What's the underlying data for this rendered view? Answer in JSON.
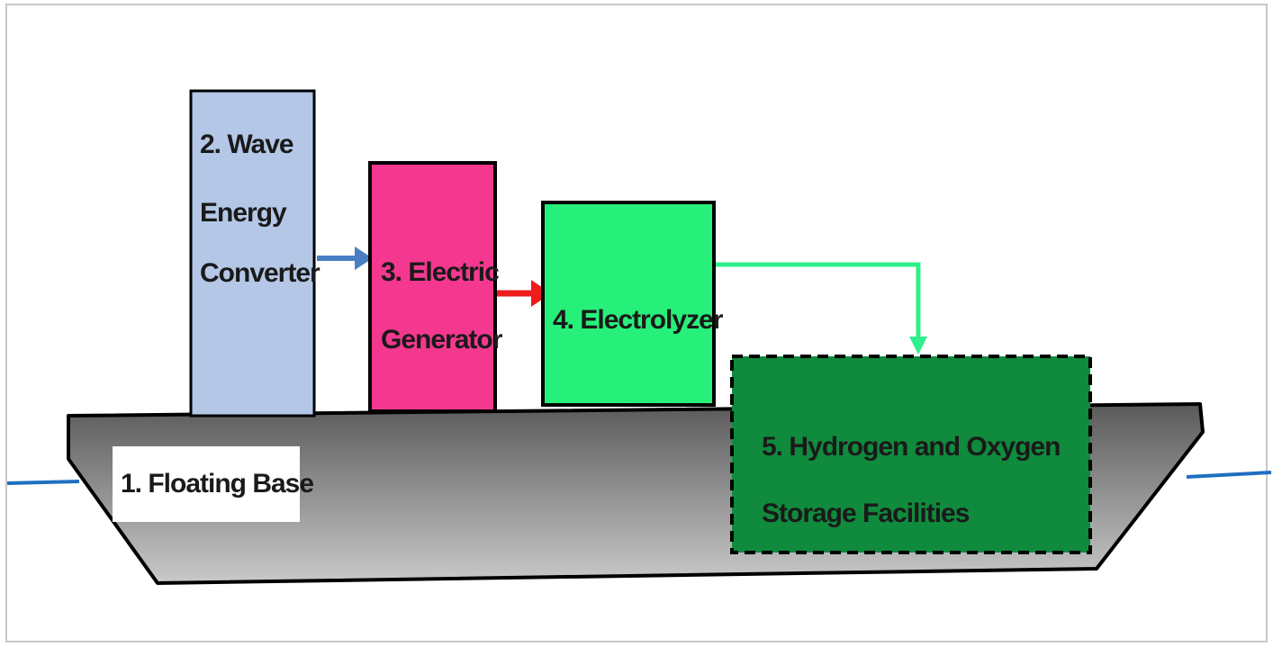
{
  "diagram": {
    "base": {
      "label": "1. Floating Base"
    },
    "wave_converter": {
      "lines": [
        "2. Wave",
        "Energy",
        "Converter"
      ],
      "color": "#b4c7e7"
    },
    "generator": {
      "lines": [
        "3. Electric",
        "Generator"
      ],
      "color": "#f5388f"
    },
    "electrolyzer": {
      "lines": [
        "4. Electrolyzer"
      ],
      "color": "#27f07a"
    },
    "storage": {
      "lines": [
        "5. Hydrogen and Oxygen",
        "Storage Facilities"
      ],
      "color": "#108a3c"
    },
    "arrows": {
      "mechanical": "#4a7ec4",
      "electric": "#ee1c1c",
      "gas": "#2ef08a"
    },
    "water_color": "#1f6fc0"
  }
}
